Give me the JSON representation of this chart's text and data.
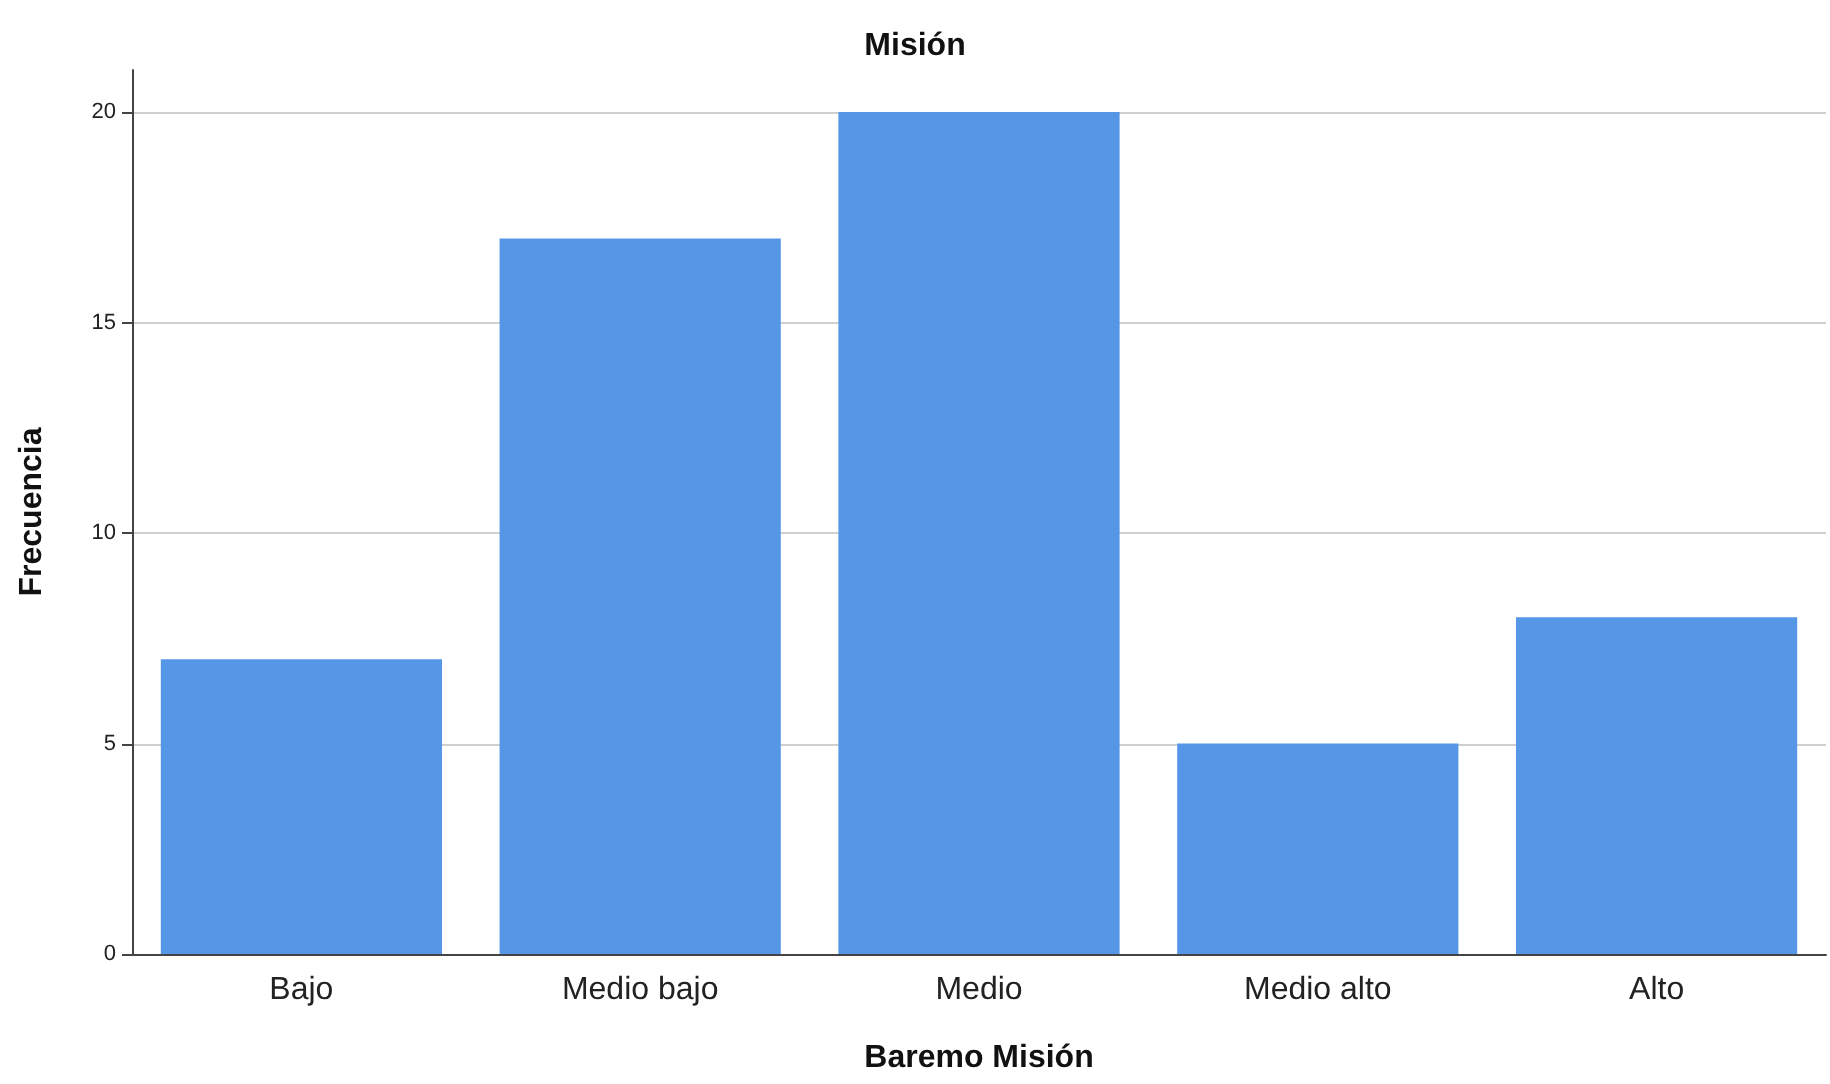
{
  "chart_data": {
    "type": "bar",
    "title": "Misión",
    "xlabel": "Baremo Misión",
    "ylabel": "Frecuencia",
    "categories": [
      "Bajo",
      "Medio bajo",
      "Medio",
      "Medio alto",
      "Alto"
    ],
    "values": [
      7,
      17,
      20,
      5,
      8
    ],
    "color": "#5596e6",
    "ylim": [
      0,
      21
    ],
    "yticks": [
      0,
      5,
      10,
      15,
      20
    ],
    "grid": "y"
  }
}
